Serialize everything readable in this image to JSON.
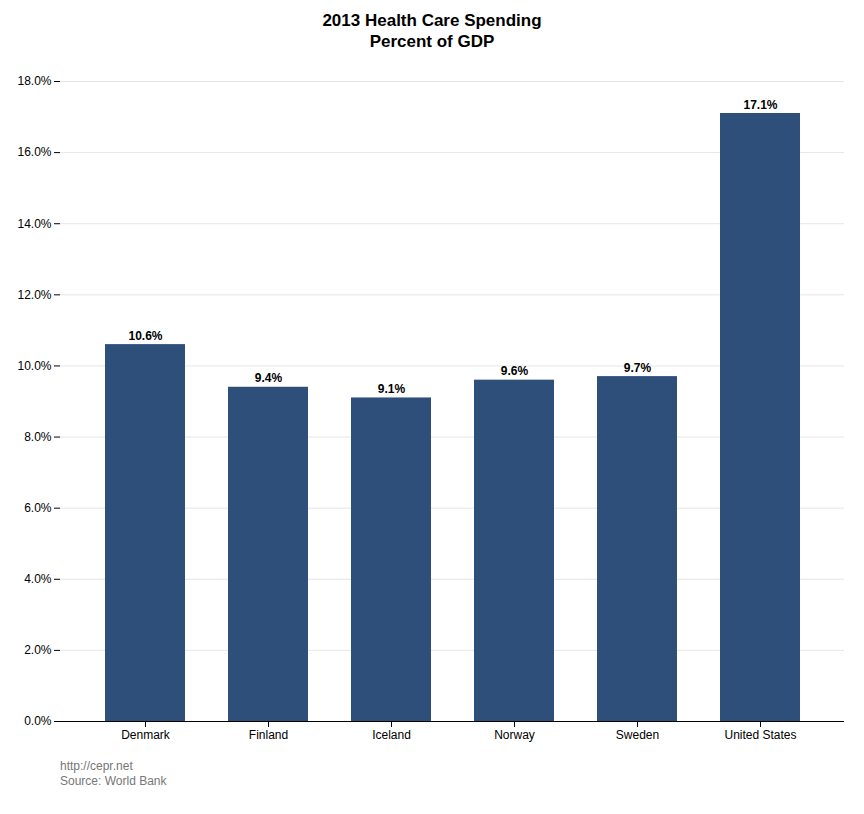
{
  "chart_data": {
    "type": "bar",
    "title": "2013 Health Care Spending\nPercent of GDP",
    "categories": [
      "Denmark",
      "Finland",
      "Iceland",
      "Norway",
      "Sweden",
      "United States"
    ],
    "values": [
      10.6,
      9.4,
      9.1,
      9.6,
      9.7,
      17.1
    ],
    "value_labels": [
      "10.6%",
      "9.4%",
      "9.1%",
      "9.6%",
      "9.7%",
      "17.1%"
    ],
    "data_labels": true,
    "color": "#2e4f7a",
    "ylim": [
      0,
      18.0
    ],
    "yticks": [
      {
        "value": 0,
        "label": "0.0%"
      },
      {
        "value": 2,
        "label": "2.0%"
      },
      {
        "value": 4,
        "label": "4.0%"
      },
      {
        "value": 6,
        "label": "6.0%"
      },
      {
        "value": 8,
        "label": "8.0%"
      },
      {
        "value": 10,
        "label": "10.0%"
      },
      {
        "value": 12,
        "label": "12.0%"
      },
      {
        "value": 14,
        "label": "14.0%"
      },
      {
        "value": 16,
        "label": "16.0%"
      },
      {
        "value": 18,
        "label": "18.0%"
      }
    ],
    "grid": true,
    "annotations": [
      "http://cepr.net",
      "Source: World Bank"
    ]
  }
}
